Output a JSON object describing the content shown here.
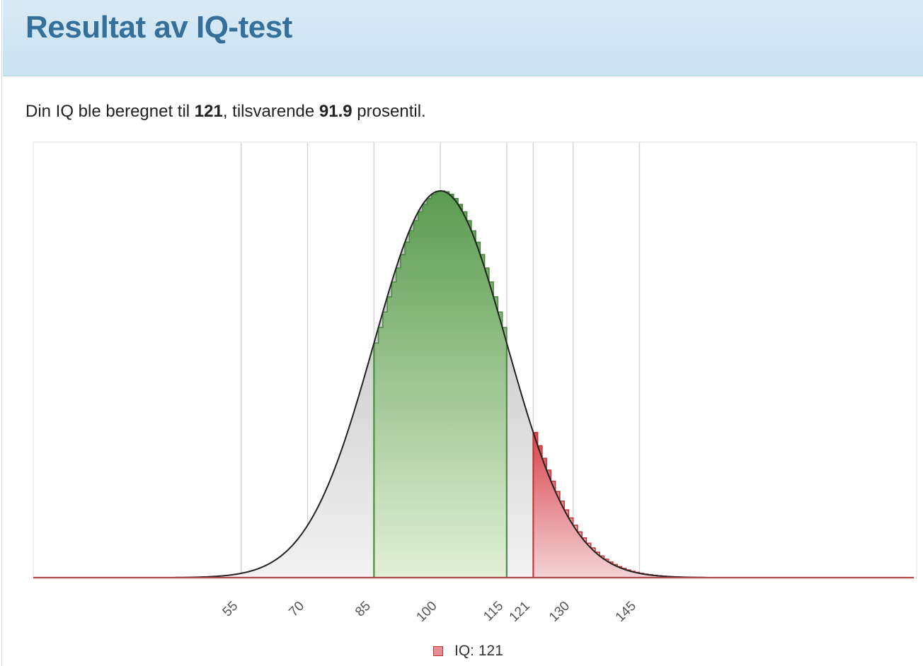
{
  "page": {
    "title": "Resultat av IQ-test"
  },
  "summary": {
    "prefix": "Din IQ ble beregnet til ",
    "iq": "121",
    "middle": ", tilsvarende ",
    "percentile": "91.9",
    "suffix": " prosentil."
  },
  "legend": {
    "label": "IQ: 121"
  },
  "colors": {
    "accent_title": "#34709a",
    "header_bg": "#cfe5f2",
    "green_fill": "#5ea055",
    "green_line": "#4f8a46",
    "red_fill": "#d9545c",
    "red_line": "#c33a3a",
    "gray_fill": "#cfcfcf",
    "curve_line": "#222222",
    "grid": "#d6d6d6"
  },
  "chart_data": {
    "type": "area",
    "distribution": "normal",
    "mean": 100,
    "sd": 15,
    "x_range": [
      8,
      207
    ],
    "tick_values": [
      55,
      70,
      85,
      100,
      115,
      121,
      130,
      145
    ],
    "tick_labels": [
      "55",
      "70",
      "85",
      "100",
      "115",
      "121",
      "130",
      "145"
    ],
    "highlight_green": [
      85,
      115
    ],
    "highlight_red_from": 121,
    "grid": true,
    "legend_position": "bottom",
    "series": [
      {
        "name": "IQ: 121",
        "value": 121
      }
    ]
  }
}
